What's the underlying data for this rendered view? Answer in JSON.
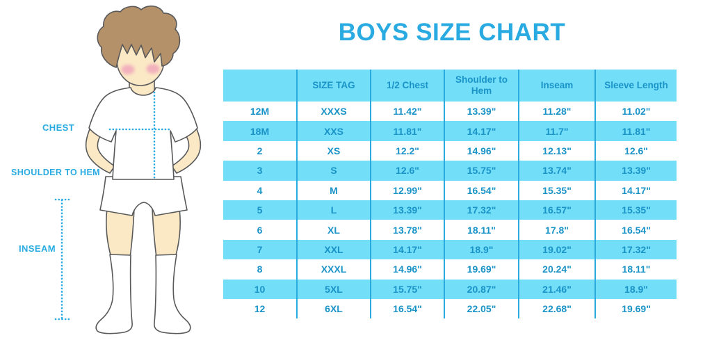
{
  "title": "BOYS SIZE CHART",
  "figure": {
    "description": "cartoon boy in white t-shirt, shorts and knee socks with measurement guides",
    "labels": {
      "chest": "CHEST",
      "shoulder_to_hem": "SHOULDER TO HEM",
      "inseam": "INSEAM"
    }
  },
  "colors": {
    "accent": "#29ABE2",
    "table_fill": "#72DEF8",
    "table_divider": "#2BAADF",
    "table_text": "#1A93C7",
    "hair": "#B59169",
    "skin": "#FBE8C5",
    "cheek": "#F1A7BB",
    "outline": "#58595B"
  },
  "chart_data": {
    "type": "table",
    "title": "BOYS SIZE CHART",
    "columns": [
      "",
      "SIZE TAG",
      "1/2 Chest",
      "Shoulder to Hem",
      "Inseam",
      "Sleeve Length"
    ],
    "rows": [
      [
        "12M",
        "XXXS",
        "11.42\"",
        "13.39\"",
        "11.28\"",
        "11.02\""
      ],
      [
        "18M",
        "XXS",
        "11.81\"",
        "14.17\"",
        "11.7\"",
        "11.81\""
      ],
      [
        "2",
        "XS",
        "12.2\"",
        "14.96\"",
        "12.13\"",
        "12.6\""
      ],
      [
        "3",
        "S",
        "12.6\"",
        "15.75\"",
        "13.74\"",
        "13.39\""
      ],
      [
        "4",
        "M",
        "12.99\"",
        "16.54\"",
        "15.35\"",
        "14.17\""
      ],
      [
        "5",
        "L",
        "13.39\"",
        "17.32\"",
        "16.57\"",
        "15.35\""
      ],
      [
        "6",
        "XL",
        "13.78\"",
        "18.11\"",
        "17.8\"",
        "16.54\""
      ],
      [
        "7",
        "XXL",
        "14.17\"",
        "18.9\"",
        "19.02\"",
        "17.32\""
      ],
      [
        "8",
        "XXXL",
        "14.96\"",
        "19.69\"",
        "20.24\"",
        "18.11\""
      ],
      [
        "10",
        "5XL",
        "15.75\"",
        "20.87\"",
        "21.46\"",
        "18.9\""
      ],
      [
        "12",
        "6XL",
        "16.54\"",
        "22.05\"",
        "22.68\"",
        "19.69\""
      ]
    ]
  }
}
